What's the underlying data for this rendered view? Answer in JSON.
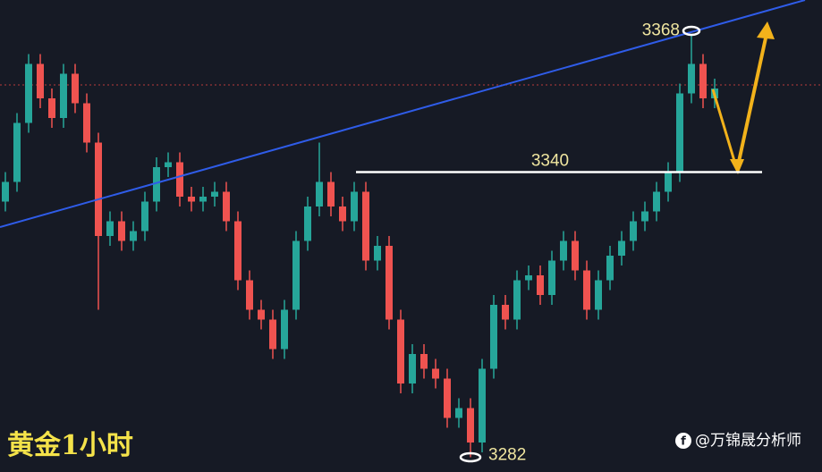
{
  "chart_data": {
    "type": "candlestick",
    "title": "黄金1小时",
    "watermark": "@万锦晟分析师",
    "up_color": "#26a69a",
    "down_color": "#ef5350",
    "ylim": [
      3279,
      3375
    ],
    "levels": [
      3368,
      3340,
      3282
    ],
    "open": [
      3334,
      3338,
      3350,
      3362,
      3355,
      3351,
      3360,
      3354,
      3346,
      3327,
      3330,
      3326,
      3328,
      3334,
      3341,
      3342,
      3335,
      3334,
      3335,
      3336,
      3330,
      3318,
      3312,
      3310,
      3304,
      3312,
      3326,
      3333,
      3338,
      3333,
      3330,
      3336,
      3322,
      3325,
      3310,
      3297,
      3303,
      3300,
      3298,
      3290,
      3292,
      3285,
      3300,
      3313,
      3310,
      3318,
      3319,
      3315,
      3322,
      3326,
      3320,
      3312,
      3318,
      3323,
      3326,
      3330,
      3332,
      3336,
      3340,
      3356,
      3362,
      3355
    ],
    "high": [
      3340,
      3352,
      3364,
      3364,
      3357,
      3362,
      3362,
      3356,
      3348,
      3332,
      3332,
      3330,
      3336,
      3343,
      3344,
      3344,
      3337,
      3337,
      3338,
      3338,
      3332,
      3320,
      3314,
      3312,
      3314,
      3328,
      3335,
      3346,
      3340,
      3335,
      3338,
      3338,
      3327,
      3327,
      3312,
      3305,
      3305,
      3302,
      3300,
      3294,
      3294,
      3302,
      3315,
      3315,
      3320,
      3321,
      3321,
      3324,
      3328,
      3328,
      3322,
      3320,
      3325,
      3328,
      3332,
      3334,
      3338,
      3342,
      3358,
      3368,
      3364,
      3359
    ],
    "low": [
      3332,
      3336,
      3348,
      3353,
      3349,
      3349,
      3352,
      3344,
      3312,
      3325,
      3324,
      3324,
      3326,
      3332,
      3339,
      3333,
      3332,
      3332,
      3333,
      3328,
      3316,
      3310,
      3308,
      3302,
      3302,
      3310,
      3324,
      3331,
      3331,
      3328,
      3328,
      3320,
      3320,
      3308,
      3295,
      3295,
      3298,
      3296,
      3288,
      3288,
      3282,
      3283,
      3298,
      3308,
      3308,
      3316,
      3313,
      3313,
      3320,
      3318,
      3310,
      3310,
      3316,
      3321,
      3324,
      3328,
      3330,
      3334,
      3338,
      3354,
      3353,
      3353
    ],
    "close": [
      3338,
      3350,
      3362,
      3355,
      3351,
      3360,
      3354,
      3346,
      3327,
      3330,
      3326,
      3328,
      3334,
      3341,
      3342,
      3335,
      3334,
      3335,
      3336,
      3330,
      3318,
      3312,
      3310,
      3304,
      3312,
      3326,
      3333,
      3338,
      3333,
      3330,
      3336,
      3322,
      3325,
      3310,
      3297,
      3303,
      3300,
      3298,
      3290,
      3292,
      3285,
      3300,
      3313,
      3310,
      3318,
      3319,
      3315,
      3322,
      3326,
      3320,
      3312,
      3318,
      3323,
      3326,
      3330,
      3332,
      3336,
      3340,
      3356,
      3362,
      3355,
      3357
    ]
  }
}
